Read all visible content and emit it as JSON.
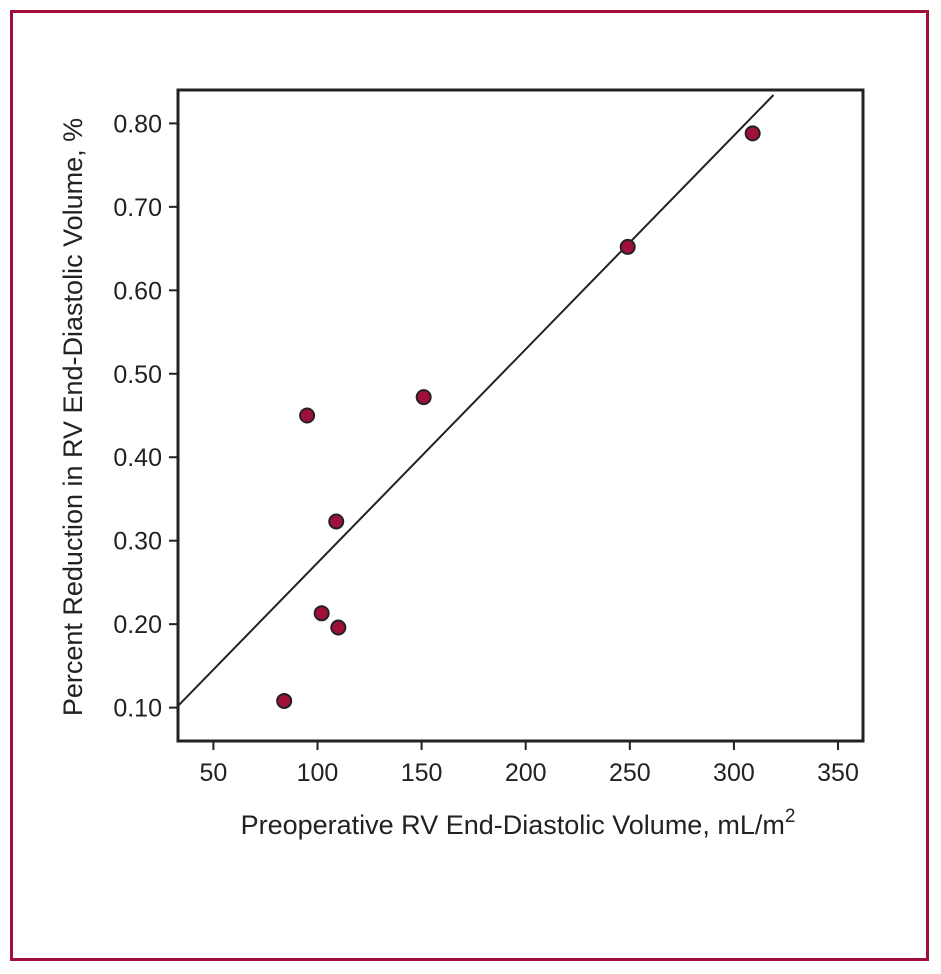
{
  "colors": {
    "frame": "#a0103a",
    "marker": "#a0103a",
    "axis": "#222222"
  },
  "chart_data": {
    "type": "scatter",
    "title": "",
    "xlabel": "Preoperative RV End-Diastolic Volume, mL/m",
    "xlabel_sup": "2",
    "ylabel": "Percent Reduction in RV End-Diastolic Volume, %",
    "xlim": [
      33,
      362
    ],
    "ylim": [
      0.06,
      0.84
    ],
    "x_ticks": [
      50,
      100,
      150,
      200,
      250,
      300,
      350
    ],
    "x_tick_labels": [
      "50",
      "100",
      "150",
      "200",
      "250",
      "300",
      "350"
    ],
    "y_ticks": [
      0.1,
      0.2,
      0.3,
      0.4,
      0.5,
      0.6,
      0.7,
      0.8
    ],
    "y_tick_labels": [
      "0.10",
      "0.20",
      "0.30",
      "0.40",
      "0.50",
      "0.60",
      "0.70",
      "0.80"
    ],
    "grid": false,
    "points": [
      {
        "x": 84,
        "y": 0.108
      },
      {
        "x": 95,
        "y": 0.45
      },
      {
        "x": 102,
        "y": 0.213
      },
      {
        "x": 109,
        "y": 0.323
      },
      {
        "x": 110,
        "y": 0.196
      },
      {
        "x": 151,
        "y": 0.472
      },
      {
        "x": 249,
        "y": 0.652
      },
      {
        "x": 309,
        "y": 0.788
      }
    ],
    "fit_line": {
      "x": [
        33,
        319
      ],
      "y": [
        0.102,
        0.834
      ]
    }
  }
}
